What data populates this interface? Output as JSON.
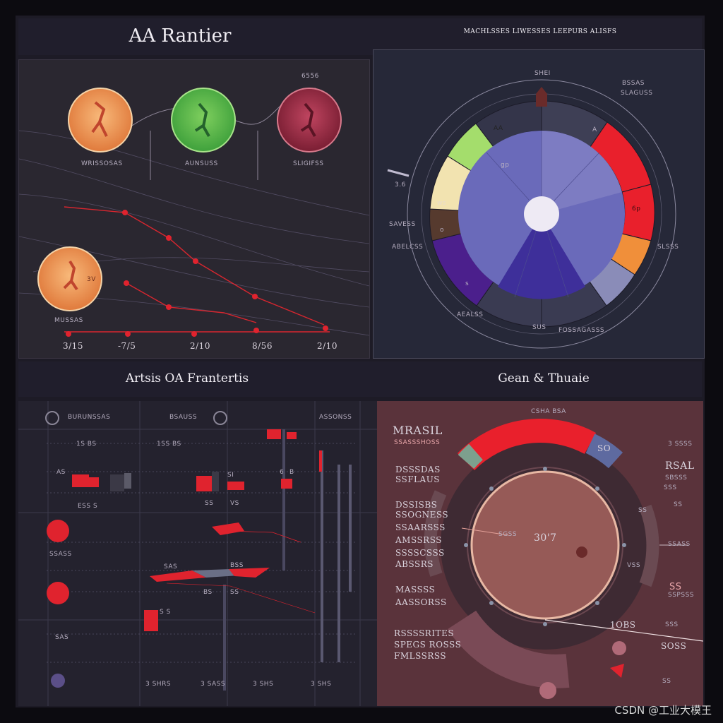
{
  "titles": {
    "top_left": "AA Rantier",
    "top_right": "MACHLSSES LIWESSES LEEPURS ALISFS",
    "mid_left": "Artsis OA Frantertis",
    "mid_right": "Gean & Thuaie"
  },
  "panel_tl": {
    "circle_labels": [
      "WRISSOSAS",
      "AUNSUSS",
      "SLIGIFSS"
    ],
    "corner_label": "6556",
    "lower_circle_label": "MUSSAS",
    "lower_circle_num": "3V",
    "axis_labels": [
      "3/15",
      "-7/5",
      "2/10",
      "8/56",
      "2/10"
    ]
  },
  "panel_tr": {
    "labels_left": [
      "3.6",
      "SAVESS",
      "ABELCSS"
    ],
    "labels_right": [
      "BSSAS",
      "SLAGUSS",
      "SLSSS"
    ],
    "labels_top": [
      "SHEI"
    ],
    "labels_bottom": [
      "AEALSS",
      "SUS",
      "FOSSAGASSS"
    ],
    "segment_labels": [
      "AA",
      "A",
      "ws",
      "6p",
      "o",
      "gp",
      "s"
    ]
  },
  "panel_bl": {
    "header_labels": [
      "BURUNSSAS",
      "BSAUSS",
      "ASSONSS"
    ],
    "row_labels": [
      "1S BS",
      "1SS BS",
      "ESS S"
    ],
    "side_labels": [
      "SSASS",
      "SAS"
    ],
    "axis_labels": [
      "3 SHRS",
      "3 SASS",
      "3 SHS",
      "3 SHS"
    ],
    "small_labels": [
      "AS",
      "SI",
      "6",
      "B",
      "SS",
      "VS",
      "BS",
      "SAS",
      "BSS",
      "SS",
      "S S"
    ]
  },
  "panel_br": {
    "top_label": "CSHA BSA",
    "heading": "MRASIL",
    "sub_heading": "SSASSSHOSS",
    "left_labels": [
      "DSSSDAS",
      "SSFLAUS",
      "DSSISBS",
      "SSOGNESS",
      "SSAARSSS",
      "AMSSRSS",
      "SSSSCSSS",
      "ABSSRS",
      "MASSSS",
      "AASSORSS"
    ],
    "left_bottom": [
      "RSSSSRITES",
      "SPEGS ROSSS",
      "FMLSSRSS"
    ],
    "center_value": "30'7",
    "center_label": "SGSS",
    "right_labels": [
      "SO",
      "RSAL",
      "SBSSS",
      "SSS",
      "SS",
      "SSASS",
      "SS",
      "VSS",
      "SS"
    ],
    "right_top": [
      "3 SSSS",
      "SSPSSS"
    ],
    "bottom_labels": [
      "1OBS",
      "SSS",
      "SOSS",
      "SS"
    ]
  },
  "watermark": "CSDN @工业大模王",
  "colors": {
    "accent_red": "#e0232e",
    "purple": "#4a3ea3",
    "slate": "#6668ab",
    "panel_maroon": "#5a333b"
  }
}
